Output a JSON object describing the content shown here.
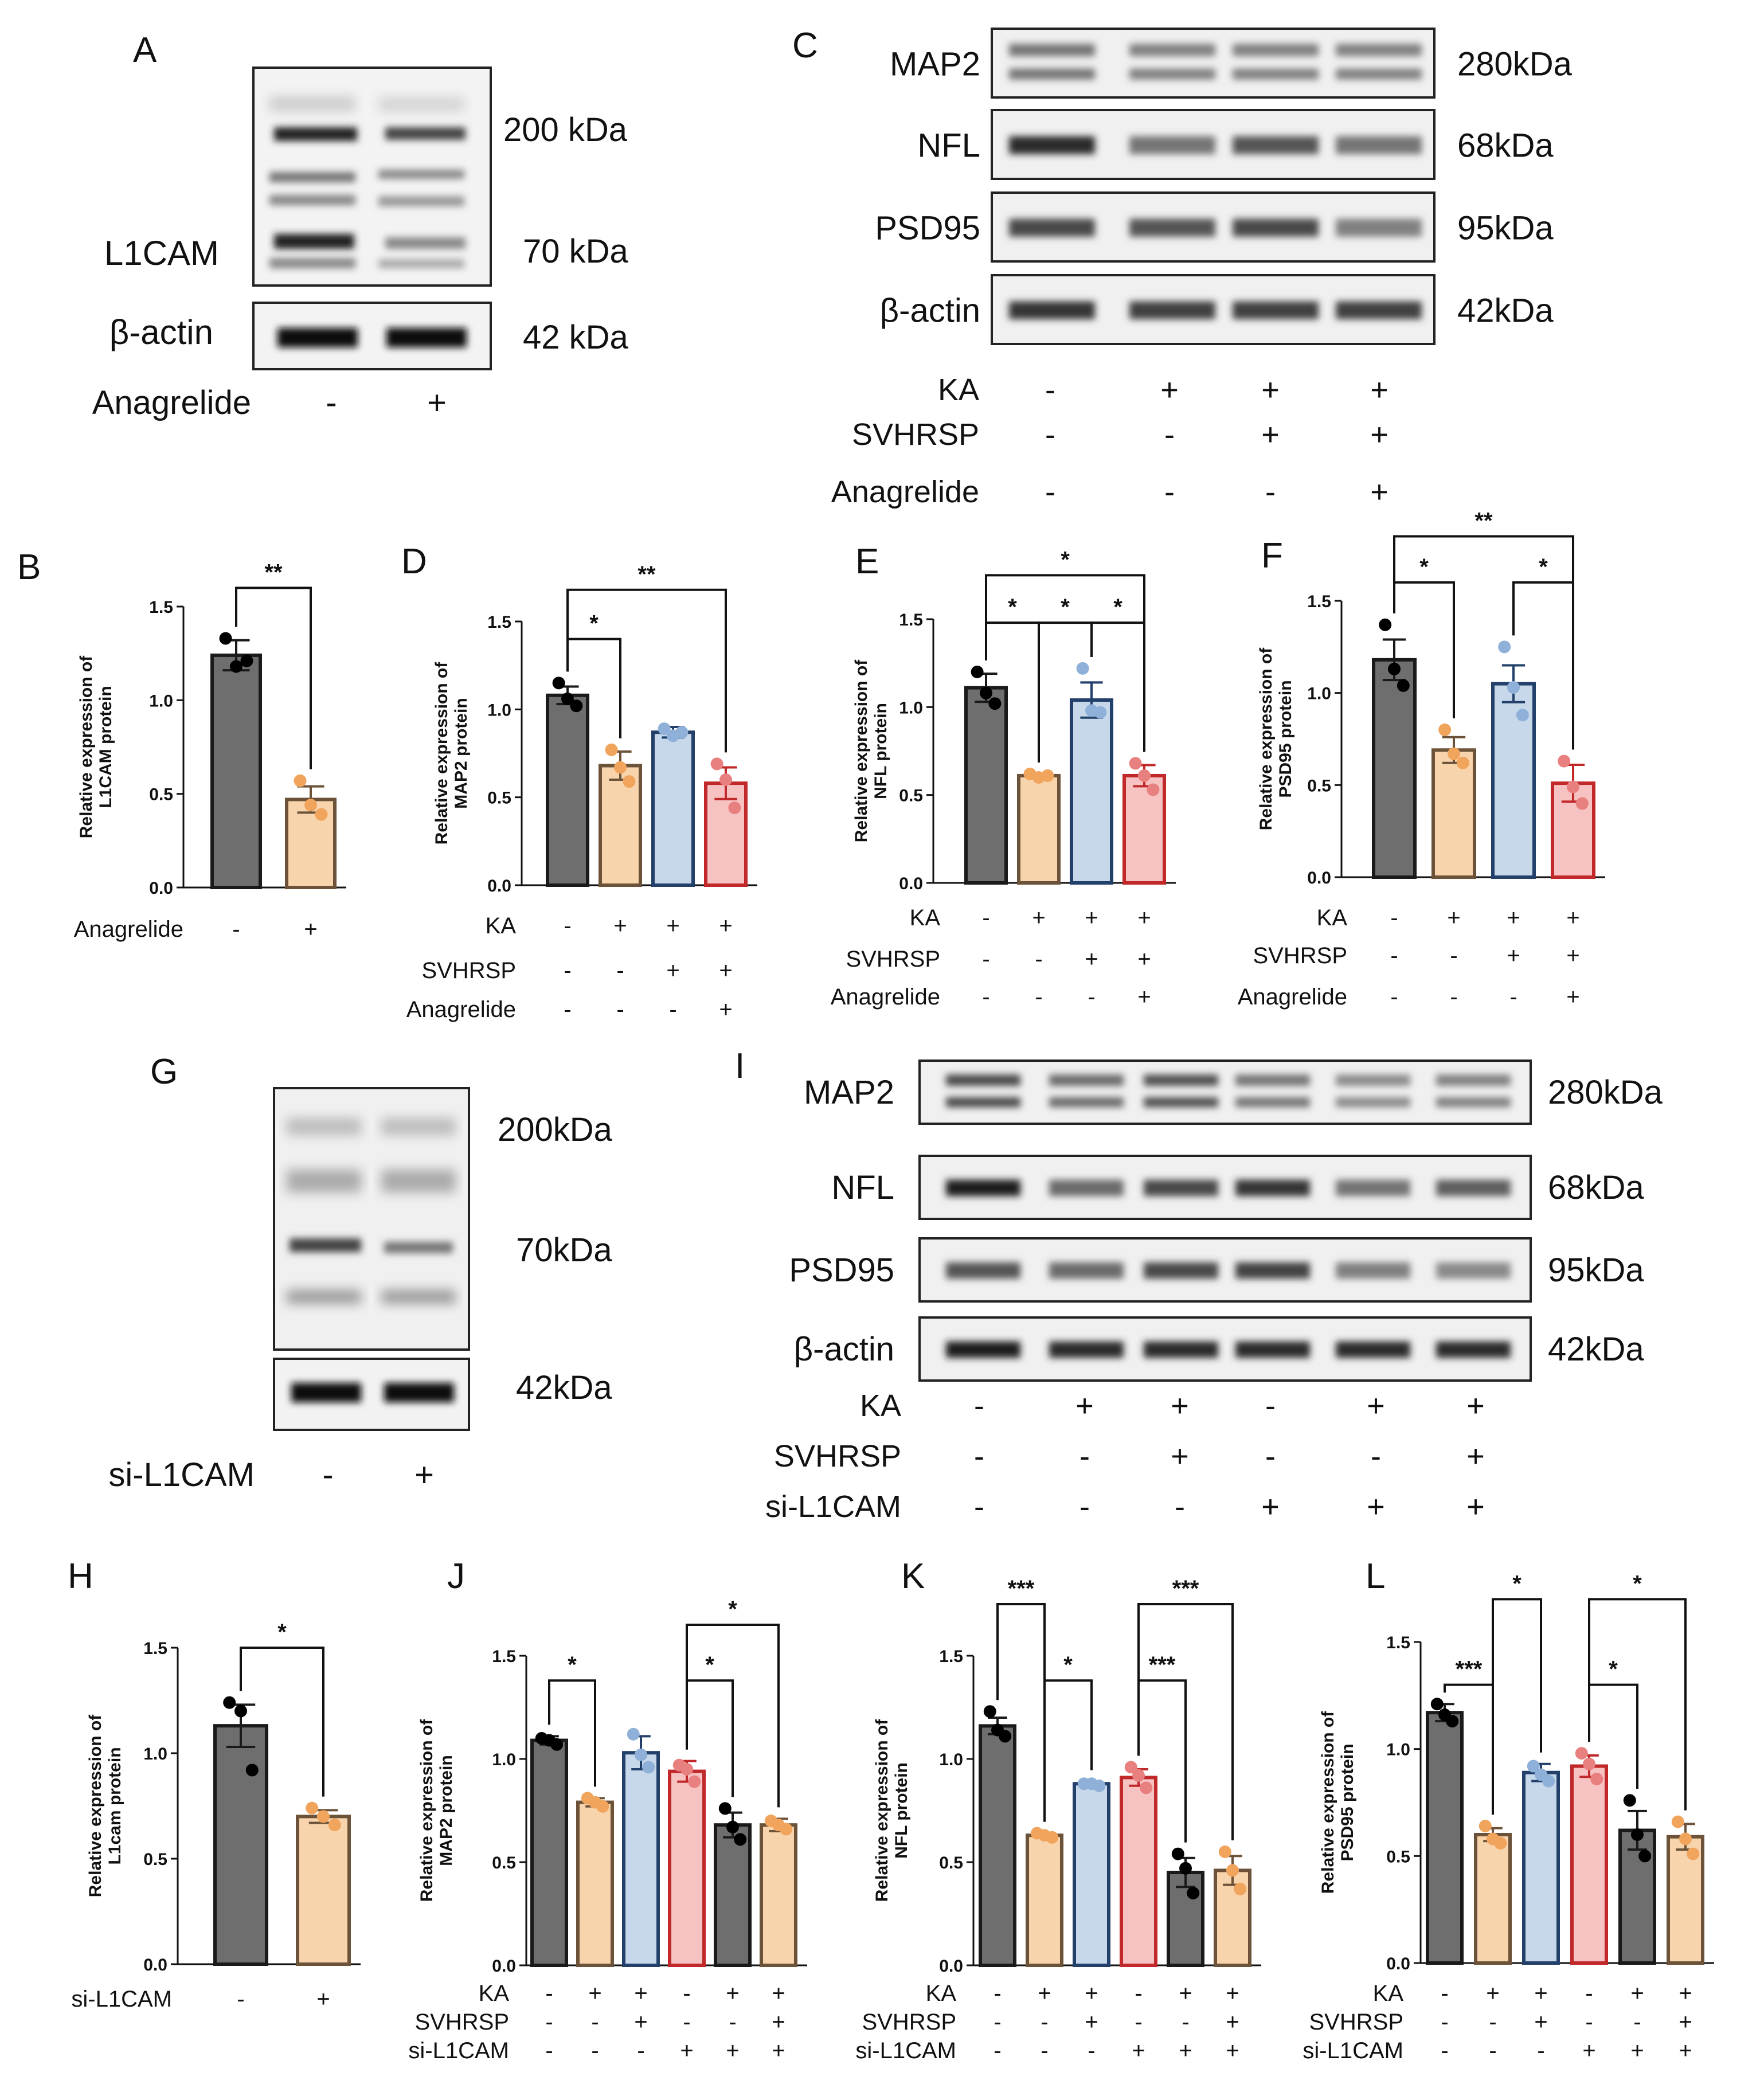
{
  "colors": {
    "grey": "#6e6e6e",
    "greyEdge": "#1a1a1a",
    "orange": "#f8d4ad",
    "orangeEdge": "#6b5238",
    "orangeDot": "#f0a45c",
    "blue": "#c7d8ea",
    "blueEdge": "#23406b",
    "blueDot": "#8fb0d8",
    "red": "#f6c2c2",
    "redEdge": "#c0282a",
    "redDot": "#e98080"
  },
  "blots": {
    "A": {
      "label": "A",
      "band_labels": [
        "L1CAM",
        "β-actin"
      ],
      "sizes": [
        "200 kDa",
        "70 kDa",
        "42 kDa"
      ],
      "conditions": [
        {
          "name": "Anagrelide",
          "values": [
            "-",
            "+"
          ]
        }
      ]
    },
    "C": {
      "label": "C",
      "rows": [
        {
          "name": "MAP2",
          "size": "280kDa"
        },
        {
          "name": "NFL",
          "size": "68kDa"
        },
        {
          "name": "PSD95",
          "size": "95kDa"
        },
        {
          "name": "β-actin",
          "size": "42kDa"
        }
      ],
      "conditions": [
        {
          "name": "KA",
          "values": [
            "-",
            "+",
            "+",
            "+"
          ]
        },
        {
          "name": "SVHRSP",
          "values": [
            "-",
            "-",
            "+",
            "+"
          ]
        },
        {
          "name": "Anagrelide",
          "values": [
            "-",
            "-",
            "-",
            "+"
          ]
        }
      ]
    },
    "G": {
      "label": "G",
      "sizes": [
        "200kDa",
        "70kDa",
        "42kDa"
      ],
      "conditions": [
        {
          "name": "si-L1CAM",
          "values": [
            "-",
            "+"
          ]
        }
      ]
    },
    "I": {
      "label": "I",
      "rows": [
        {
          "name": "MAP2",
          "size": "280kDa"
        },
        {
          "name": "NFL",
          "size": "68kDa"
        },
        {
          "name": "PSD95",
          "size": "95kDa"
        },
        {
          "name": "β-actin",
          "size": "42kDa"
        }
      ],
      "conditions": [
        {
          "name": "KA",
          "values": [
            "-",
            "+",
            "+",
            "-",
            "+",
            "+"
          ]
        },
        {
          "name": "SVHRSP",
          "values": [
            "-",
            "-",
            "+",
            "-",
            "-",
            "+"
          ]
        },
        {
          "name": "si-L1CAM",
          "values": [
            "-",
            "-",
            "-",
            "+",
            "+",
            "+"
          ]
        }
      ]
    }
  },
  "chart_data": [
    {
      "panel": "B",
      "type": "bar",
      "ylabel": [
        "Relative expression of",
        "L1CAM protein"
      ],
      "ylim": [
        0,
        1.5
      ],
      "yticks": [
        "0.0",
        "0.5",
        "1.0",
        "1.5"
      ],
      "values": [
        1.24,
        0.47
      ],
      "sem": [
        0.08,
        0.07
      ],
      "points": [
        [
          1.33,
          1.18,
          1.21
        ],
        [
          0.57,
          0.44,
          0.39
        ]
      ],
      "colors": [
        "grey",
        "orange"
      ],
      "conditions": [
        {
          "name": "Anagrelide",
          "values": [
            "-",
            "+"
          ]
        }
      ],
      "sig": [
        {
          "a": 0,
          "b": 1,
          "label": "**",
          "y": 1.6
        }
      ]
    },
    {
      "panel": "D",
      "type": "bar",
      "ylabel": [
        "Relative expression of",
        "MAP2 protein"
      ],
      "ylim": [
        0,
        1.5
      ],
      "yticks": [
        "0.0",
        "0.5",
        "1.0",
        "1.5"
      ],
      "values": [
        1.08,
        0.68,
        0.87,
        0.58
      ],
      "sem": [
        0.05,
        0.08,
        0.03,
        0.09
      ],
      "points": [
        [
          1.15,
          1.06,
          1.02
        ],
        [
          0.77,
          0.67,
          0.59
        ],
        [
          0.89,
          0.85,
          0.87
        ],
        [
          0.69,
          0.6,
          0.44
        ]
      ],
      "colors": [
        "grey",
        "orange",
        "blue",
        "red"
      ],
      "conditions": [
        {
          "name": "KA",
          "values": [
            "-",
            "+",
            "+",
            "+"
          ]
        },
        {
          "name": "SVHRSP",
          "values": [
            "-",
            "-",
            "+",
            "+"
          ]
        },
        {
          "name": "Anagrelide",
          "values": [
            "-",
            "-",
            "-",
            "+"
          ]
        }
      ],
      "sig": [
        {
          "a": 0,
          "b": 1,
          "label": "*",
          "y": 1.4
        },
        {
          "a": 0,
          "b": 3,
          "label": "**",
          "y": 1.68
        }
      ]
    },
    {
      "panel": "E",
      "type": "bar",
      "ylabel": [
        "Relative expression of",
        "NFL protein"
      ],
      "ylim": [
        0,
        1.5
      ],
      "yticks": [
        "0.0",
        "0.5",
        "1.0",
        "1.5"
      ],
      "values": [
        1.11,
        0.61,
        1.04,
        0.61
      ],
      "sem": [
        0.08,
        0.01,
        0.1,
        0.06
      ],
      "points": [
        [
          1.2,
          1.08,
          1.02
        ],
        [
          0.62,
          0.6,
          0.61
        ],
        [
          1.22,
          0.98,
          0.97
        ],
        [
          0.68,
          0.61,
          0.53
        ]
      ],
      "colors": [
        "grey",
        "orange",
        "blue",
        "red"
      ],
      "conditions": [
        {
          "name": "KA",
          "values": [
            "-",
            "+",
            "+",
            "+"
          ]
        },
        {
          "name": "SVHRSP",
          "values": [
            "-",
            "-",
            "+",
            "+"
          ]
        },
        {
          "name": "Anagrelide",
          "values": [
            "-",
            "-",
            "-",
            "+"
          ]
        }
      ],
      "sig": [
        {
          "a": 0,
          "b": 1,
          "label": "*",
          "y": 1.48
        },
        {
          "a": 1,
          "b": 2,
          "label": "*",
          "y": 1.48
        },
        {
          "a": 2,
          "b": 3,
          "label": "*",
          "y": 1.48
        },
        {
          "a": 0,
          "b": 3,
          "label": "*",
          "y": 1.75
        }
      ]
    },
    {
      "panel": "F",
      "type": "bar",
      "ylabel": [
        "Relative expression of",
        "PSD95 protein"
      ],
      "ylim": [
        0,
        1.5
      ],
      "yticks": [
        "0.0",
        "0.5",
        "1.0",
        "1.5"
      ],
      "values": [
        1.18,
        0.69,
        1.05,
        0.51
      ],
      "sem": [
        0.11,
        0.07,
        0.1,
        0.1
      ],
      "points": [
        [
          1.37,
          1.13,
          1.04
        ],
        [
          0.8,
          0.67,
          0.62
        ],
        [
          1.25,
          1.03,
          0.88
        ],
        [
          0.63,
          0.49,
          0.4
        ]
      ],
      "colors": [
        "grey",
        "orange",
        "blue",
        "red"
      ],
      "conditions": [
        {
          "name": "KA",
          "values": [
            "-",
            "+",
            "+",
            "+"
          ]
        },
        {
          "name": "SVHRSP",
          "values": [
            "-",
            "-",
            "+",
            "+"
          ]
        },
        {
          "name": "Anagrelide",
          "values": [
            "-",
            "-",
            "-",
            "+"
          ]
        }
      ],
      "sig": [
        {
          "a": 0,
          "b": 1,
          "label": "*",
          "y": 1.6
        },
        {
          "a": 2,
          "b": 3,
          "label": "*",
          "y": 1.6
        },
        {
          "a": 0,
          "b": 3,
          "label": "**",
          "y": 1.85
        }
      ]
    },
    {
      "panel": "H",
      "type": "bar",
      "ylabel": [
        "Relative expression of",
        "L1cam protein"
      ],
      "ylim": [
        0,
        1.5
      ],
      "yticks": [
        "0.0",
        "0.5",
        "1.0",
        "1.5"
      ],
      "values": [
        1.13,
        0.7
      ],
      "sem": [
        0.1,
        0.03
      ],
      "points": [
        [
          1.24,
          1.2,
          0.92
        ],
        [
          0.74,
          0.7,
          0.66
        ]
      ],
      "colors": [
        "grey",
        "orange"
      ],
      "conditions": [
        {
          "name": "si-L1CAM",
          "values": [
            "-",
            "+"
          ]
        }
      ],
      "sig": [
        {
          "a": 0,
          "b": 1,
          "label": "*",
          "y": 1.5
        }
      ]
    },
    {
      "panel": "J",
      "type": "bar",
      "ylabel": [
        "Relative expression of",
        "MAP2 protein"
      ],
      "ylim": [
        0,
        1.5
      ],
      "yticks": [
        "0.0",
        "0.5",
        "1.0",
        "1.5"
      ],
      "values": [
        1.09,
        0.79,
        1.03,
        0.94,
        0.68,
        0.68
      ],
      "sem": [
        0.02,
        0.02,
        0.08,
        0.05,
        0.06,
        0.03
      ],
      "points": [
        [
          1.1,
          1.09,
          1.07
        ],
        [
          0.81,
          0.79,
          0.77
        ],
        [
          1.12,
          1.02,
          0.96
        ],
        [
          0.97,
          0.95,
          0.89
        ],
        [
          0.76,
          0.67,
          0.61
        ],
        [
          0.7,
          0.68,
          0.66
        ]
      ],
      "colors": [
        "grey",
        "orange",
        "blue",
        "red",
        "grey",
        "orange"
      ],
      "conditions": [
        {
          "name": "KA",
          "values": [
            "-",
            "+",
            "+",
            "-",
            "+",
            "+"
          ]
        },
        {
          "name": "SVHRSP",
          "values": [
            "-",
            "-",
            "+",
            "-",
            "-",
            "+"
          ]
        },
        {
          "name": "si-L1CAM",
          "values": [
            "-",
            "-",
            "-",
            "+",
            "+",
            "+"
          ]
        }
      ],
      "sig": [
        {
          "a": 0,
          "b": 1,
          "label": "*",
          "y": 1.38
        },
        {
          "a": 3,
          "b": 4,
          "label": "*",
          "y": 1.38
        },
        {
          "a": 3,
          "b": 5,
          "label": "*",
          "y": 1.65
        }
      ]
    },
    {
      "panel": "K",
      "type": "bar",
      "ylabel": [
        "Relative expression of",
        "NFL protein"
      ],
      "ylim": [
        0,
        1.5
      ],
      "yticks": [
        "0.0",
        "0.5",
        "1.0",
        "1.5"
      ],
      "values": [
        1.16,
        0.63,
        0.88,
        0.91,
        0.45,
        0.46
      ],
      "sem": [
        0.04,
        0.01,
        0.01,
        0.04,
        0.07,
        0.07
      ],
      "points": [
        [
          1.23,
          1.14,
          1.11
        ],
        [
          0.64,
          0.63,
          0.62
        ],
        [
          0.88,
          0.88,
          0.87
        ],
        [
          0.96,
          0.92,
          0.86
        ],
        [
          0.54,
          0.47,
          0.35
        ],
        [
          0.55,
          0.46,
          0.37
        ]
      ],
      "colors": [
        "grey",
        "orange",
        "blue",
        "red",
        "grey",
        "orange"
      ],
      "conditions": [
        {
          "name": "KA",
          "values": [
            "-",
            "+",
            "+",
            "-",
            "+",
            "+"
          ]
        },
        {
          "name": "SVHRSP",
          "values": [
            "-",
            "-",
            "+",
            "-",
            "-",
            "+"
          ]
        },
        {
          "name": "si-L1CAM",
          "values": [
            "-",
            "-",
            "-",
            "+",
            "+",
            "+"
          ]
        }
      ],
      "sig": [
        {
          "a": 0,
          "b": 1,
          "label": "***",
          "y": 1.75
        },
        {
          "a": 1,
          "b": 2,
          "label": "*",
          "y": 1.38
        },
        {
          "a": 3,
          "b": 4,
          "label": "***",
          "y": 1.38
        },
        {
          "a": 3,
          "b": 5,
          "label": "***",
          "y": 1.75
        }
      ]
    },
    {
      "panel": "L",
      "type": "bar",
      "ylabel": [
        "Relative expression of",
        "PSD95 protein"
      ],
      "ylim": [
        0,
        1.5
      ],
      "yticks": [
        "0.0",
        "0.5",
        "1.0",
        "1.5"
      ],
      "values": [
        1.17,
        0.6,
        0.89,
        0.92,
        0.62,
        0.59
      ],
      "sem": [
        0.04,
        0.03,
        0.04,
        0.05,
        0.09,
        0.06
      ],
      "points": [
        [
          1.21,
          1.16,
          1.13
        ],
        [
          0.64,
          0.58,
          0.56
        ],
        [
          0.92,
          0.88,
          0.85
        ],
        [
          0.98,
          0.93,
          0.86
        ],
        [
          0.76,
          0.6,
          0.5
        ],
        [
          0.66,
          0.58,
          0.51
        ]
      ],
      "colors": [
        "grey",
        "orange",
        "blue",
        "red",
        "grey",
        "orange"
      ],
      "conditions": [
        {
          "name": "KA",
          "values": [
            "-",
            "+",
            "+",
            "-",
            "+",
            "+"
          ]
        },
        {
          "name": "SVHRSP",
          "values": [
            "-",
            "-",
            "+",
            "-",
            "-",
            "+"
          ]
        },
        {
          "name": "si-L1CAM",
          "values": [
            "-",
            "-",
            "-",
            "+",
            "+",
            "+"
          ]
        }
      ],
      "sig": [
        {
          "a": 0,
          "b": 1,
          "label": "***",
          "y": 1.3
        },
        {
          "a": 1,
          "b": 2,
          "label": "*",
          "y": 1.7
        },
        {
          "a": 3,
          "b": 4,
          "label": "*",
          "y": 1.3
        },
        {
          "a": 3,
          "b": 5,
          "label": "*",
          "y": 1.7
        }
      ]
    }
  ]
}
